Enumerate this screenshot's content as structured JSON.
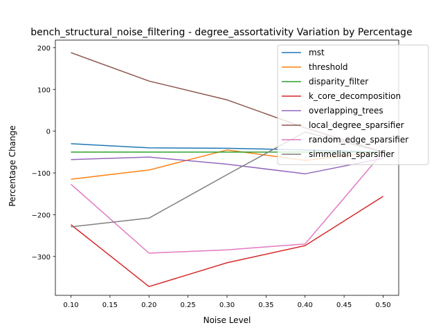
{
  "chart_data": {
    "type": "line",
    "title": "bench_structural_noise_filtering - degree_assortativity Variation by Percentage",
    "xlabel": "Noise Level",
    "ylabel": "Percentage Change",
    "x": [
      0.1,
      0.2,
      0.3,
      0.4,
      0.5
    ],
    "xlim": [
      0.08,
      0.52
    ],
    "ylim": [
      -393,
      218
    ],
    "xticks": [
      "0.10",
      "0.15",
      "0.20",
      "0.25",
      "0.30",
      "0.35",
      "0.40",
      "0.45",
      "0.50"
    ],
    "yticks": [
      "−300",
      "−200",
      "−100",
      "0",
      "100",
      "200"
    ],
    "grid": false,
    "legend_position": "top-right",
    "series": [
      {
        "name": "mst",
        "color": "#1f77b4",
        "values": [
          -30,
          -40,
          -41,
          -45,
          -50
        ]
      },
      {
        "name": "threshold",
        "color": "#ff7f0e",
        "values": [
          -115,
          -93,
          -45,
          -70,
          -48
        ]
      },
      {
        "name": "disparity_filter",
        "color": "#2ca02c",
        "values": [
          -50,
          -50,
          -50,
          -50,
          -50
        ]
      },
      {
        "name": "k_core_decomposition",
        "color": "#d62728",
        "values": [
          -224,
          -372,
          -315,
          -274,
          -156
        ]
      },
      {
        "name": "overlapping_trees",
        "color": "#9467bd",
        "values": [
          -68,
          -62,
          -79,
          -102,
          -65
        ]
      },
      {
        "name": "local_degree_sparsifier",
        "color": "#8c564b",
        "values": [
          188,
          120,
          75,
          8,
          -50
        ]
      },
      {
        "name": "random_edge_sparsifier",
        "color": "#e377c2",
        "values": [
          -127,
          -292,
          -284,
          -270,
          -50
        ]
      },
      {
        "name": "simmelian_sparsifier",
        "color": "#7f7f7f",
        "values": [
          -229,
          -208,
          -104,
          -2,
          -50
        ]
      }
    ]
  }
}
